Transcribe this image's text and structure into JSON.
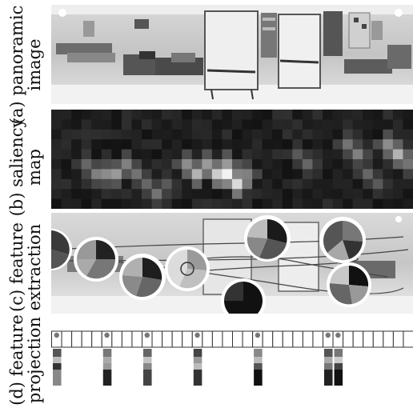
{
  "labels": {
    "a": {
      "line1": "(a) panoramic",
      "line2": "image"
    },
    "b": {
      "line1": "(b) saliency",
      "line2": "map"
    },
    "c": {
      "line1": "(c) feature",
      "line2": "extraction"
    },
    "d": {
      "line1": "(d) feature",
      "line2": "projection"
    }
  },
  "projection_grid": {
    "cells": 36,
    "marker_cells": [
      0,
      5,
      9,
      14,
      20,
      27,
      28
    ]
  }
}
